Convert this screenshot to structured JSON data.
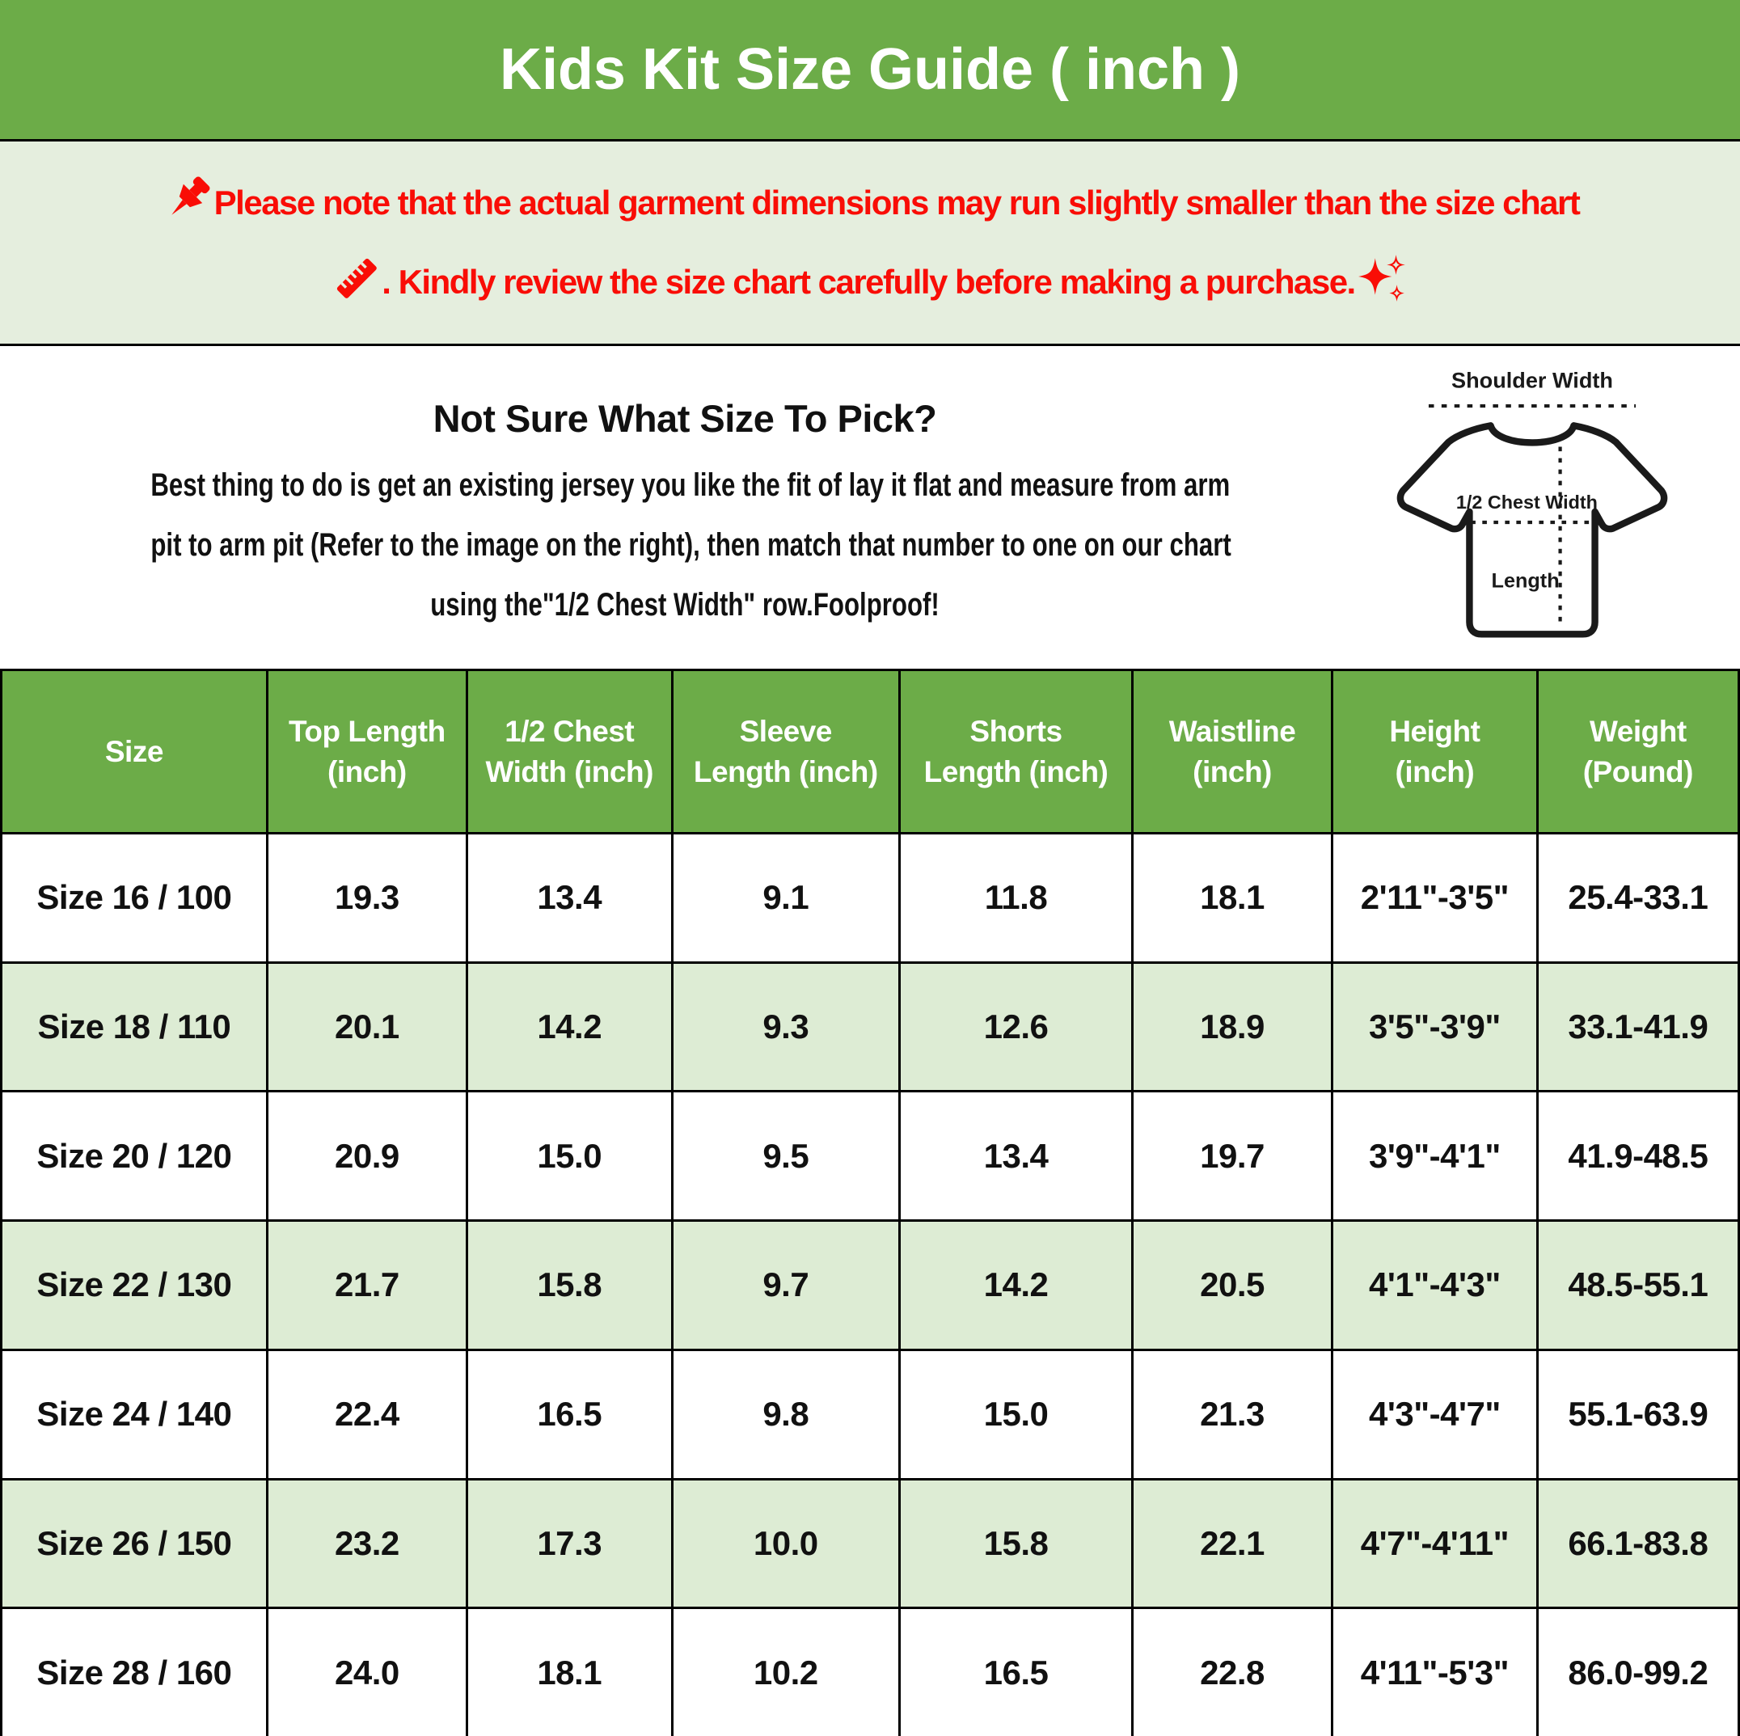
{
  "title": "Kids Kit Size Guide ( inch )",
  "colors": {
    "header_green": "#6cac48",
    "notice_background": "#e5eede",
    "alt_row_green": "#ddecd4",
    "warning_red": "#f90d06",
    "table_border": "#000000",
    "body_text": "#111111",
    "header_text": "#ffffff"
  },
  "icons": {
    "pushpin": "📌",
    "ruler": "📏",
    "sparkles": "✨"
  },
  "notice": {
    "line1_text": "Please note that the actual garment dimensions may run slightly smaller than the size chart",
    "line2_text": ". Kindly review the size chart carefully before making a purchase."
  },
  "size_help": {
    "heading": "Not Sure What Size To Pick?",
    "body_line1": "Best thing to do is get an existing jersey you like the fit of lay it flat and measure from arm",
    "body_line2": "pit to arm pit (Refer to the image on the right), then match that number to one on our chart",
    "body_line3": "using the\"1/2 Chest Width\" row.Foolproof!"
  },
  "shirt_diagram": {
    "shoulder_label": "Shoulder Width",
    "chest_label": "1/2 Chest Width",
    "length_label": "Length"
  },
  "table": {
    "headers": [
      "Size",
      "Top Length\n(inch)",
      "1/2 Chest\nWidth (inch)",
      "Sleeve\nLength (inch)",
      "Shorts\nLength (inch)",
      "Waistline\n(inch)",
      "Height\n(inch)",
      "Weight\n(Pound)"
    ],
    "column_width_percents": [
      15.3,
      11.5,
      11.8,
      13.1,
      13.4,
      11.5,
      11.8,
      11.6
    ],
    "rows": [
      [
        "Size 16 / 100",
        "19.3",
        "13.4",
        "9.1",
        "11.8",
        "18.1",
        "2'11\"-3'5\"",
        "25.4-33.1"
      ],
      [
        "Size 18 / 110",
        "20.1",
        "14.2",
        "9.3",
        "12.6",
        "18.9",
        "3'5\"-3'9\"",
        "33.1-41.9"
      ],
      [
        "Size 20 / 120",
        "20.9",
        "15.0",
        "9.5",
        "13.4",
        "19.7",
        "3'9\"-4'1\"",
        "41.9-48.5"
      ],
      [
        "Size 22 / 130",
        "21.7",
        "15.8",
        "9.7",
        "14.2",
        "20.5",
        "4'1\"-4'3\"",
        "48.5-55.1"
      ],
      [
        "Size 24 / 140",
        "22.4",
        "16.5",
        "9.8",
        "15.0",
        "21.3",
        "4'3\"-4'7\"",
        "55.1-63.9"
      ],
      [
        "Size 26 / 150",
        "23.2",
        "17.3",
        "10.0",
        "15.8",
        "22.1",
        "4'7\"-4'11\"",
        "66.1-83.8"
      ],
      [
        "Size 28 / 160",
        "24.0",
        "18.1",
        "10.2",
        "16.5",
        "22.8",
        "4'11\"-5'3\"",
        "86.0-99.2"
      ]
    ]
  }
}
